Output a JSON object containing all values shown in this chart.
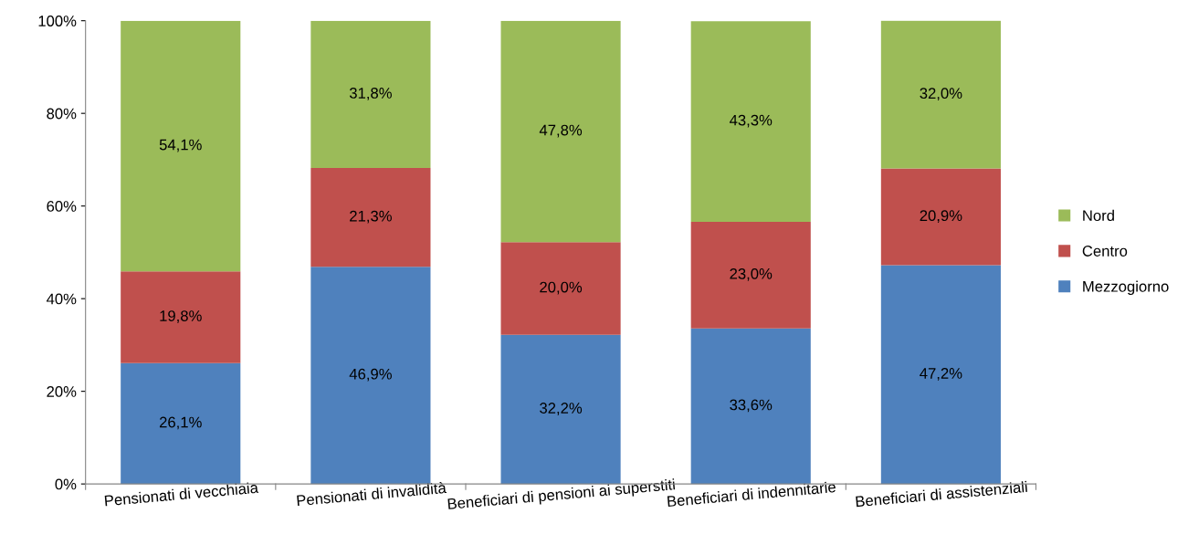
{
  "chart_data": {
    "type": "bar",
    "stacked": true,
    "categories": [
      "Pensionati di vecchiaia",
      "Pensionati di invalidità",
      "Beneficiari di pensioni ai superstiti",
      "Beneficiari di indennitarie",
      "Beneficiari di assistenziali"
    ],
    "series": [
      {
        "name": "Mezzogiorno",
        "color": "#4f81bd",
        "values": [
          26.1,
          46.9,
          32.2,
          33.6,
          47.2
        ],
        "value_labels": [
          "26,1%",
          "46,9%",
          "32,2%",
          "33,6%",
          "47,2%"
        ]
      },
      {
        "name": "Centro",
        "color": "#c0504d",
        "values": [
          19.8,
          21.3,
          20.0,
          23.0,
          20.9
        ],
        "value_labels": [
          "19,8%",
          "21,3%",
          "20,0%",
          "23,0%",
          "20,9%"
        ]
      },
      {
        "name": "Nord",
        "color": "#9bbb59",
        "values": [
          54.1,
          31.8,
          47.8,
          43.3,
          32.0
        ],
        "value_labels": [
          "54,1%",
          "31,8%",
          "47,8%",
          "43,3%",
          "32,0%"
        ]
      }
    ],
    "ylim": [
      0,
      100
    ],
    "yticks": [
      {
        "value": 0,
        "label": "0%"
      },
      {
        "value": 20,
        "label": "20%"
      },
      {
        "value": 40,
        "label": "40%"
      },
      {
        "value": 60,
        "label": "60%"
      },
      {
        "value": 80,
        "label": "80%"
      },
      {
        "value": 100,
        "label": "100%"
      }
    ],
    "grid": false,
    "legend": "right"
  }
}
